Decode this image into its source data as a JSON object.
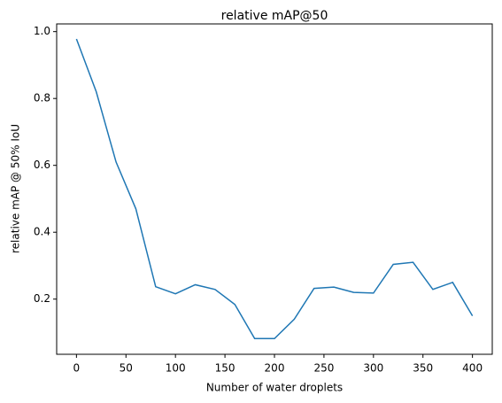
{
  "chart_data": {
    "type": "line",
    "title": "relative mAP@50",
    "x_label": "Number of water droplets",
    "y_label": "relative mAP @ 50% IoU",
    "x": [
      0,
      20,
      40,
      60,
      80,
      100,
      120,
      140,
      160,
      180,
      200,
      220,
      240,
      260,
      280,
      300,
      320,
      340,
      360,
      380,
      400
    ],
    "series": [
      {
        "name": "relative mAP@50",
        "color": "#1f77b4",
        "values": [
          0.978,
          0.82,
          0.61,
          0.47,
          0.237,
          0.216,
          0.243,
          0.229,
          0.184,
          0.082,
          0.082,
          0.14,
          0.232,
          0.236,
          0.22,
          0.218,
          0.304,
          0.31,
          0.229,
          0.25,
          0.15
        ]
      }
    ],
    "xlim": [
      -20,
      420
    ],
    "xticks": [
      0,
      50,
      100,
      150,
      200,
      250,
      300,
      350,
      400
    ],
    "ylim": [
      0.035,
      1.023
    ],
    "yticks": [
      0.2,
      0.4,
      0.6,
      0.8,
      {
        "value": 1.0,
        "label": "1.0"
      }
    ],
    "grid": false
  }
}
